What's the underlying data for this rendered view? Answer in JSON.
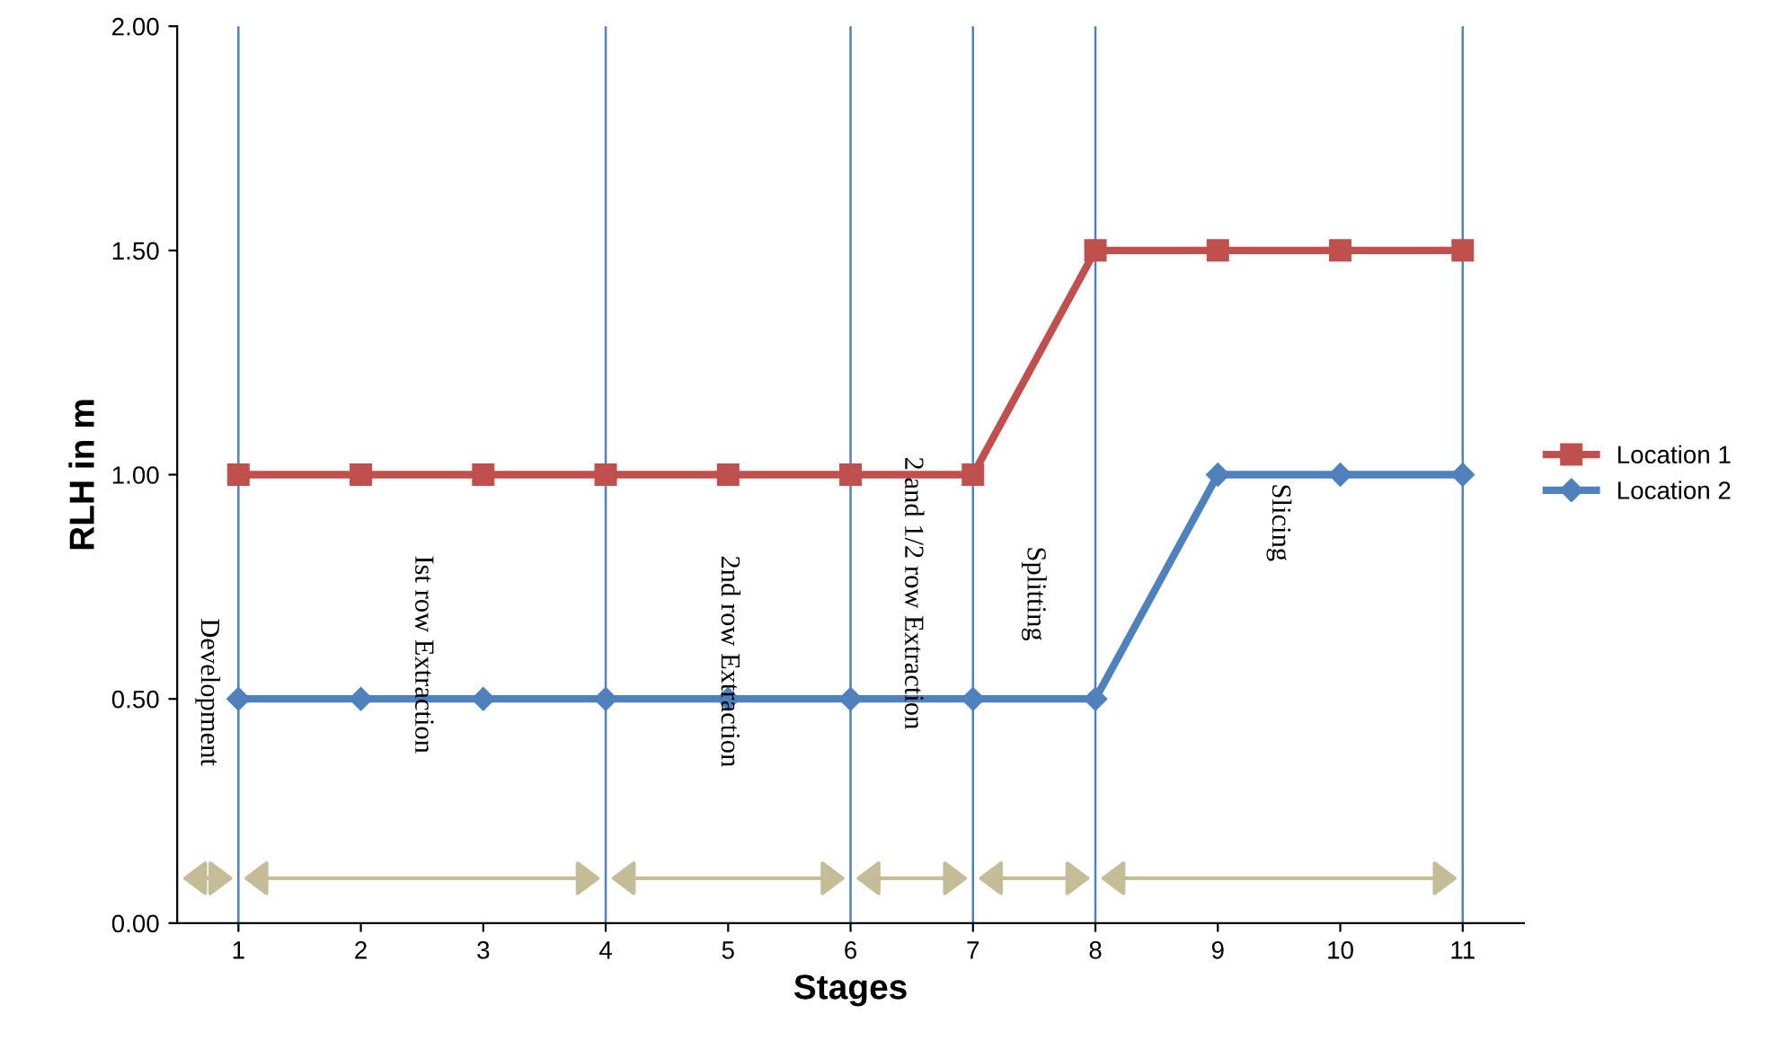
{
  "chart_data": {
    "type": "line",
    "xlabel": "Stages",
    "ylabel": "RLH in m",
    "x": [
      1,
      2,
      3,
      4,
      5,
      6,
      7,
      8,
      9,
      10,
      11
    ],
    "xlim": [
      0.5,
      11.5
    ],
    "xticks": [
      1,
      2,
      3,
      4,
      5,
      6,
      7,
      8,
      9,
      10,
      11
    ],
    "ylim": [
      0,
      2
    ],
    "yticks": [
      {
        "value": 0,
        "label": "0.00"
      },
      {
        "value": 0.5,
        "label": "0.50"
      },
      {
        "value": 1,
        "label": "1.00"
      },
      {
        "value": 1.5,
        "label": "1.50"
      },
      {
        "value": 2,
        "label": "2.00"
      }
    ],
    "series": [
      {
        "name": "Location 1",
        "color": "#c0504d",
        "marker": "square",
        "values": [
          1,
          1,
          1,
          1,
          1,
          1,
          1,
          1.5,
          1.5,
          1.5,
          1.5
        ]
      },
      {
        "name": "Location 2",
        "color": "#4f81bd",
        "marker": "diamond",
        "values": [
          0.5,
          0.5,
          0.5,
          0.5,
          0.5,
          0.5,
          0.5,
          0.5,
          1,
          1,
          1
        ]
      }
    ],
    "ref_lines": [
      {
        "axis": "x",
        "value": 1,
        "color": "#4f81bd"
      },
      {
        "axis": "x",
        "value": 4,
        "color": "#4f81bd"
      },
      {
        "axis": "x",
        "value": 6,
        "color": "#4f81bd"
      },
      {
        "axis": "x",
        "value": 7,
        "color": "#4f81bd"
      },
      {
        "axis": "x",
        "value": 8,
        "color": "#4f81bd"
      },
      {
        "axis": "x",
        "value": 11,
        "color": "#4f81bd"
      }
    ],
    "annotations": [
      "Development",
      "Ist row Extraction",
      "2nd row Extraction",
      "2 and 1/2 row Extraction",
      "Splitting",
      "Slicing"
    ],
    "grid": false,
    "legend": "right"
  }
}
